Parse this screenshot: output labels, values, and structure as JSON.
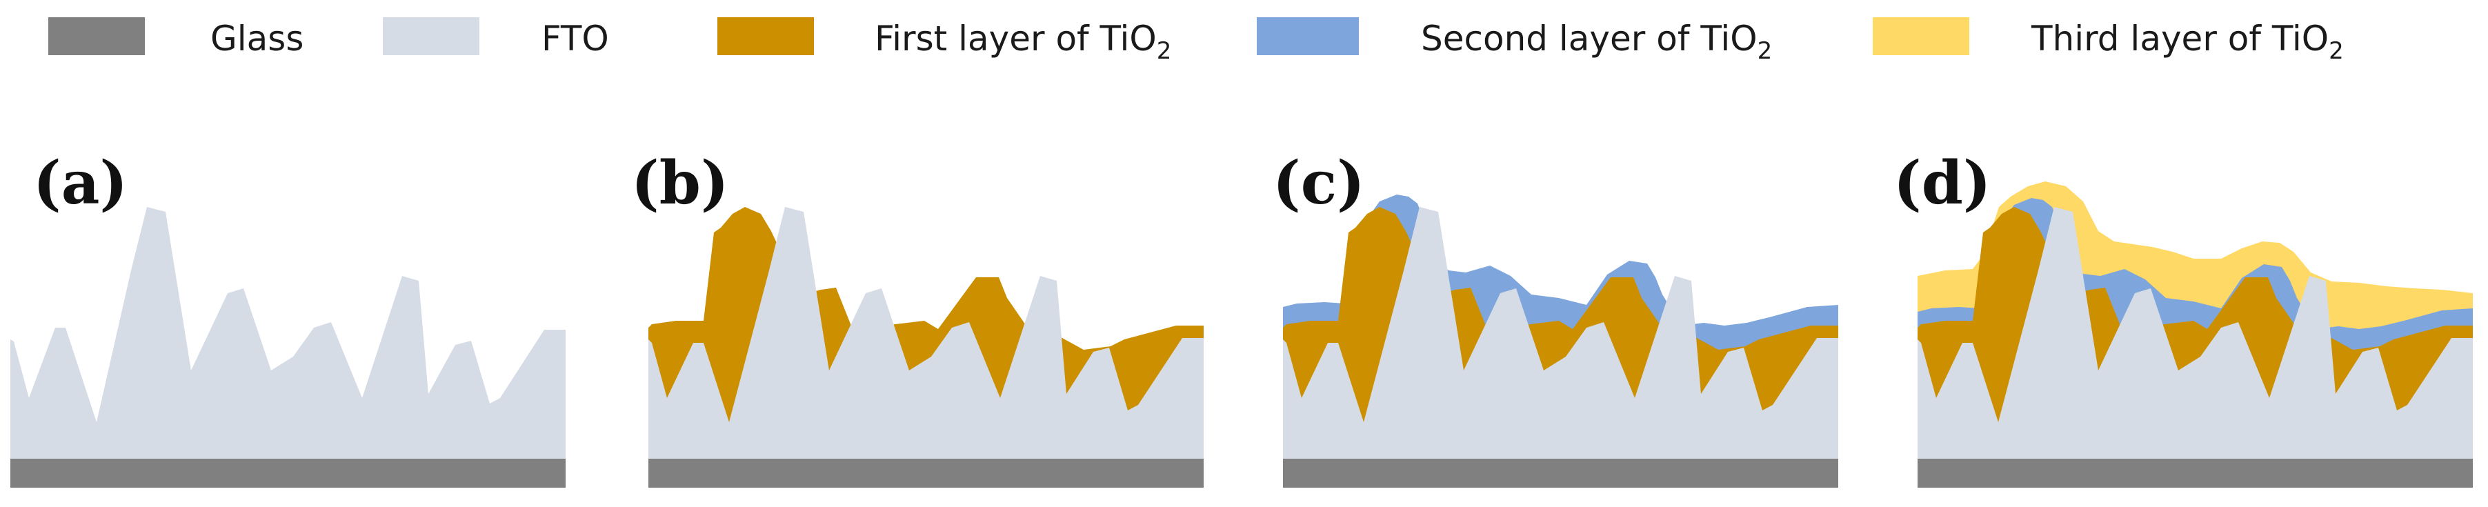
{
  "legend": [
    {
      "id": "glass",
      "label": "Glass",
      "color": "#808080"
    },
    {
      "id": "fto",
      "label": "FTO",
      "color": "#D6DCE5"
    },
    {
      "id": "first",
      "label_main": "First layer of TiO",
      "label_sub": "2",
      "color": "#CC8F00"
    },
    {
      "id": "second",
      "label_main": "Second layer of TiO",
      "label_sub": "2",
      "color": "#7FA6DC"
    },
    {
      "id": "third",
      "label_main": "Third layer of TiO",
      "label_sub": "2",
      "color": "#FFD966"
    }
  ],
  "panels": [
    {
      "label": "(a)",
      "layers": 0
    },
    {
      "label": "(b)",
      "layers": 1
    },
    {
      "label": "(c)",
      "layers": 2
    },
    {
      "label": "(d)",
      "layers": 3
    }
  ]
}
